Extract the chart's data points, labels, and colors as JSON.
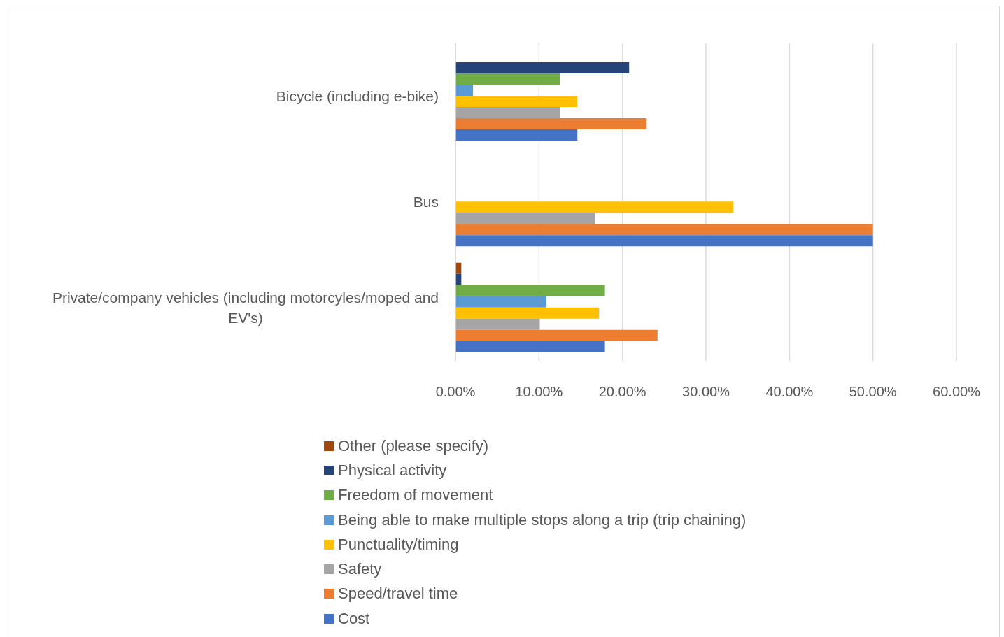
{
  "chart_data": {
    "type": "bar",
    "orientation": "horizontal",
    "categories": [
      "Bicycle (including e-bike)",
      "Bus",
      "Private/company vehicles (including motorcyles/moped and EV's)"
    ],
    "series": [
      {
        "name": "Other (please specify)",
        "color": "#9e480e",
        "values": [
          0,
          0,
          0.7
        ]
      },
      {
        "name": "Physical activity",
        "color": "#264478",
        "values": [
          20.8,
          0,
          0.7
        ]
      },
      {
        "name": "Freedom of movement",
        "color": "#70ad47",
        "values": [
          12.5,
          0,
          17.9
        ]
      },
      {
        "name": "Being able to make multiple stops along a trip (trip chaining)",
        "color": "#5b9bd5",
        "values": [
          2.1,
          0,
          10.9
        ]
      },
      {
        "name": "Punctuality/timing",
        "color": "#ffc000",
        "values": [
          14.6,
          33.3,
          17.2
        ]
      },
      {
        "name": "Safety",
        "color": "#a5a5a5",
        "values": [
          12.5,
          16.7,
          10.1
        ]
      },
      {
        "name": "Speed/travel time",
        "color": "#ed7d31",
        "values": [
          22.9,
          50,
          24.2
        ]
      },
      {
        "name": "Cost",
        "color": "#4472c4",
        "values": [
          14.6,
          50,
          17.9
        ]
      }
    ],
    "xlim": [
      0,
      60
    ],
    "xticks": [
      {
        "value": 0,
        "label": "0.00%"
      },
      {
        "value": 10,
        "label": "10.00%"
      },
      {
        "value": 20,
        "label": "20.00%"
      },
      {
        "value": 30,
        "label": "30.00%"
      },
      {
        "value": 40,
        "label": "40.00%"
      },
      {
        "value": 50,
        "label": "50.00%"
      },
      {
        "value": 60,
        "label": "60.00%"
      }
    ],
    "grid": "x",
    "legend": "bottom"
  }
}
